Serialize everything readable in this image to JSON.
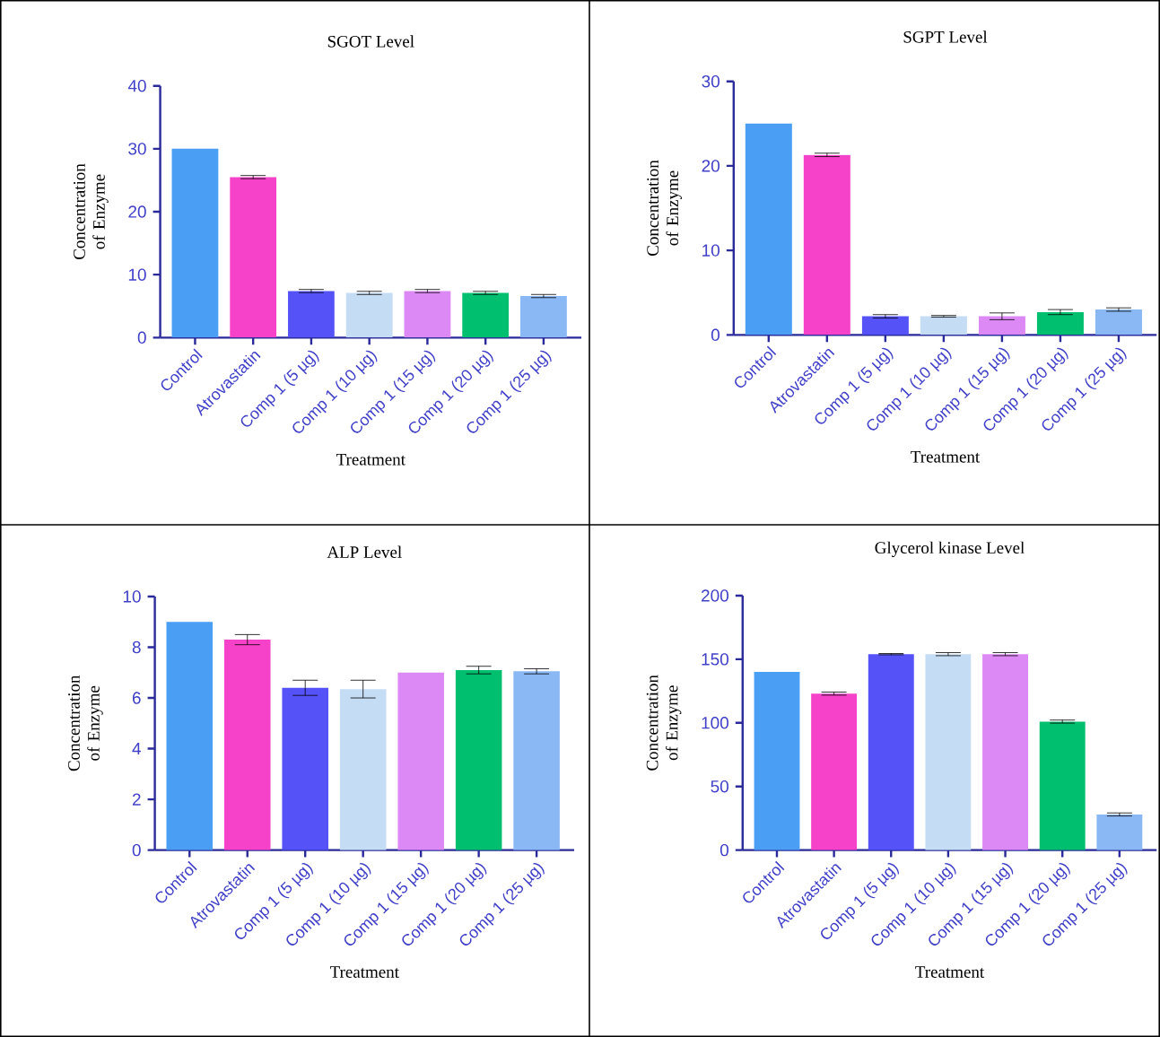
{
  "chart_data": [
    {
      "type": "bar",
      "title": "SGOT Level",
      "xlabel": "Treatment",
      "ylabel": "Concentration of Enzyme",
      "categories": [
        "Control",
        "Atrovastatin",
        "Comp 1 (5 µg)",
        "Comp 1 (10 µg)",
        "Comp 1 (15 µg)",
        "Comp 1 (20 µg)",
        "Comp 1 (25 µg)"
      ],
      "values": [
        30,
        25.5,
        7.4,
        7.1,
        7.4,
        7.1,
        6.6
      ],
      "errors": [
        null,
        0.25,
        0.25,
        0.25,
        0.25,
        0.25,
        0.25
      ],
      "colors": [
        "#4a9ff5",
        "#f542c8",
        "#5552f8",
        "#c5dcf5",
        "#dc88f5",
        "#00c070",
        "#8ab8f5"
      ],
      "ylim": [
        0,
        40
      ],
      "yticks": [
        0,
        10,
        20,
        30,
        40
      ]
    },
    {
      "type": "bar",
      "title": "SGPT Level",
      "xlabel": "Treatment",
      "ylabel": "Concentration of Enzyme",
      "categories": [
        "Control",
        "Atrovastatin",
        "Comp 1 (5 µg)",
        "Comp 1 (10 µg)",
        "Comp 1 (15 µg)",
        "Comp 1 (20 µg)",
        "Comp 1 (25 µg)"
      ],
      "values": [
        25,
        21.3,
        2.2,
        2.2,
        2.2,
        2.7,
        3.0
      ],
      "errors": [
        null,
        0.2,
        0.2,
        0.1,
        0.4,
        0.3,
        0.2
      ],
      "colors": [
        "#4a9ff5",
        "#f542c8",
        "#5552f8",
        "#c5dcf5",
        "#dc88f5",
        "#00c070",
        "#8ab8f5"
      ],
      "ylim": [
        0,
        30
      ],
      "yticks": [
        0,
        10,
        20,
        30
      ]
    },
    {
      "type": "bar",
      "title": "ALP Level",
      "xlabel": "Treatment",
      "ylabel": "Concentration of Enzyme",
      "categories": [
        "Control",
        "Atrovastatin",
        "Comp 1 (5 µg)",
        "Comp 1 (10 µg)",
        "Comp 1 (15 µg)",
        "Comp 1 (20 µg)",
        "Comp 1 (25 µg)"
      ],
      "values": [
        9,
        8.3,
        6.4,
        6.35,
        7.0,
        7.1,
        7.05
      ],
      "errors": [
        null,
        0.2,
        0.3,
        0.35,
        null,
        0.15,
        0.1
      ],
      "colors": [
        "#4a9ff5",
        "#f542c8",
        "#5552f8",
        "#c5dcf5",
        "#dc88f5",
        "#00c070",
        "#8ab8f5"
      ],
      "ylim": [
        0,
        10
      ],
      "yticks": [
        0,
        2,
        4,
        6,
        8,
        10
      ]
    },
    {
      "type": "bar",
      "title": "Glycerol kinase Level",
      "xlabel": "Treatment",
      "ylabel": "Concentration of Enzyme",
      "categories": [
        "Control",
        "Atrovastatin",
        "Comp 1 (5 µg)",
        "Comp 1 (10 µg)",
        "Comp 1 (15 µg)",
        "Comp 1 (20 µg)",
        "Comp 1 (25 µg)"
      ],
      "values": [
        140,
        123,
        154,
        154,
        154,
        101,
        28
      ],
      "errors": [
        null,
        1.2,
        0.5,
        1.2,
        1.2,
        1.2,
        1.2
      ],
      "colors": [
        "#4a9ff5",
        "#f542c8",
        "#5552f8",
        "#c5dcf5",
        "#dc88f5",
        "#00c070",
        "#8ab8f5"
      ],
      "ylim": [
        0,
        200
      ],
      "yticks": [
        0,
        50,
        100,
        150,
        200
      ]
    }
  ]
}
